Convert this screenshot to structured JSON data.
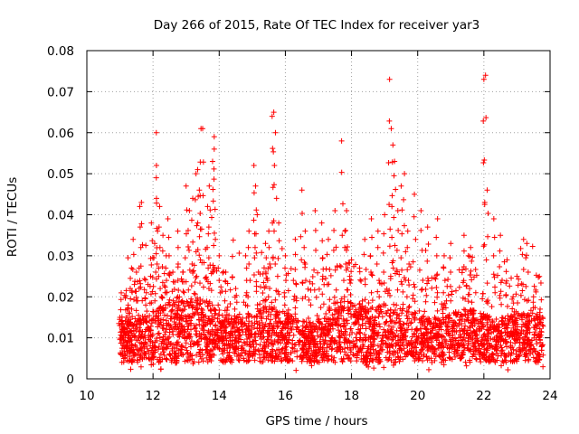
{
  "chart_data": {
    "type": "scatter",
    "title": "Day 266 of 2015, Rate Of TEC Index for receiver yar3",
    "xlabel": "GPS time / hours",
    "ylabel": "ROTI / TECUs",
    "xlim": [
      10,
      24
    ],
    "ylim": [
      0,
      0.08
    ],
    "xticks": [
      10,
      12,
      14,
      16,
      18,
      20,
      22,
      24
    ],
    "yticks": [
      0,
      0.01,
      0.02,
      0.03,
      0.04,
      0.05,
      0.06,
      0.07,
      0.08
    ],
    "xtick_labels": [
      "10",
      "12",
      "14",
      "16",
      "18",
      "20",
      "22",
      "24"
    ],
    "ytick_labels": [
      "0",
      "0.01",
      "0.02",
      "0.03",
      "0.04",
      "0.05",
      "0.06",
      "0.07",
      "0.08"
    ],
    "grid": true,
    "marker": "+",
    "color": "#ff0000",
    "data_range": [
      11.0,
      23.8
    ],
    "series": [
      {
        "name": "ROTI",
        "points": [
          [
            11.0,
            0.015
          ],
          [
            11.1,
            0.012
          ],
          [
            11.25,
            0.018
          ],
          [
            11.35,
            0.027
          ],
          [
            11.4,
            0.034
          ],
          [
            11.5,
            0.026
          ],
          [
            11.6,
            0.042
          ],
          [
            11.65,
            0.043
          ],
          [
            11.8,
            0.021
          ],
          [
            11.95,
            0.038
          ],
          [
            12.05,
            0.033
          ],
          [
            12.1,
            0.049
          ],
          [
            12.1,
            0.06
          ],
          [
            12.2,
            0.042
          ],
          [
            12.3,
            0.035
          ],
          [
            12.4,
            0.03
          ],
          [
            12.45,
            0.039
          ],
          [
            12.6,
            0.026
          ],
          [
            12.75,
            0.036
          ],
          [
            12.9,
            0.026
          ],
          [
            13.0,
            0.047
          ],
          [
            13.1,
            0.041
          ],
          [
            13.2,
            0.044
          ],
          [
            13.3,
            0.05
          ],
          [
            13.35,
            0.051
          ],
          [
            13.4,
            0.046
          ],
          [
            13.45,
            0.061
          ],
          [
            13.5,
            0.061
          ],
          [
            13.65,
            0.042
          ],
          [
            13.7,
            0.047
          ],
          [
            13.8,
            0.053
          ],
          [
            13.85,
            0.056
          ],
          [
            13.85,
            0.059
          ],
          [
            14.0,
            0.03
          ],
          [
            14.2,
            0.026
          ],
          [
            14.5,
            0.022
          ],
          [
            14.8,
            0.03
          ],
          [
            14.9,
            0.036
          ],
          [
            15.05,
            0.052
          ],
          [
            15.1,
            0.047
          ],
          [
            15.15,
            0.04
          ],
          [
            15.4,
            0.033
          ],
          [
            15.5,
            0.036
          ],
          [
            15.6,
            0.064
          ],
          [
            15.65,
            0.065
          ],
          [
            15.7,
            0.06
          ],
          [
            15.8,
            0.038
          ],
          [
            16.0,
            0.03
          ],
          [
            16.3,
            0.034
          ],
          [
            16.5,
            0.046
          ],
          [
            16.6,
            0.036
          ],
          [
            16.9,
            0.041
          ],
          [
            17.1,
            0.038
          ],
          [
            17.3,
            0.034
          ],
          [
            17.5,
            0.041
          ],
          [
            17.7,
            0.058
          ],
          [
            17.8,
            0.036
          ],
          [
            17.85,
            0.041
          ],
          [
            18.0,
            0.029
          ],
          [
            18.4,
            0.034
          ],
          [
            18.6,
            0.039
          ],
          [
            18.8,
            0.036
          ],
          [
            19.0,
            0.04
          ],
          [
            19.15,
            0.073
          ],
          [
            19.2,
            0.061
          ],
          [
            19.25,
            0.057
          ],
          [
            19.3,
            0.053
          ],
          [
            19.4,
            0.041
          ],
          [
            19.5,
            0.047
          ],
          [
            19.6,
            0.05
          ],
          [
            19.7,
            0.036
          ],
          [
            19.9,
            0.045
          ],
          [
            20.1,
            0.041
          ],
          [
            20.3,
            0.037
          ],
          [
            20.6,
            0.039
          ],
          [
            20.8,
            0.03
          ],
          [
            21.0,
            0.033
          ],
          [
            21.4,
            0.035
          ],
          [
            21.6,
            0.032
          ],
          [
            22.0,
            0.073
          ],
          [
            22.05,
            0.074
          ],
          [
            22.1,
            0.046
          ],
          [
            22.3,
            0.039
          ],
          [
            22.5,
            0.035
          ],
          [
            22.7,
            0.029
          ],
          [
            23.0,
            0.025
          ],
          [
            23.2,
            0.034
          ],
          [
            23.3,
            0.033
          ],
          [
            23.5,
            0.02
          ],
          [
            23.7,
            0.017
          ]
        ]
      }
    ]
  }
}
